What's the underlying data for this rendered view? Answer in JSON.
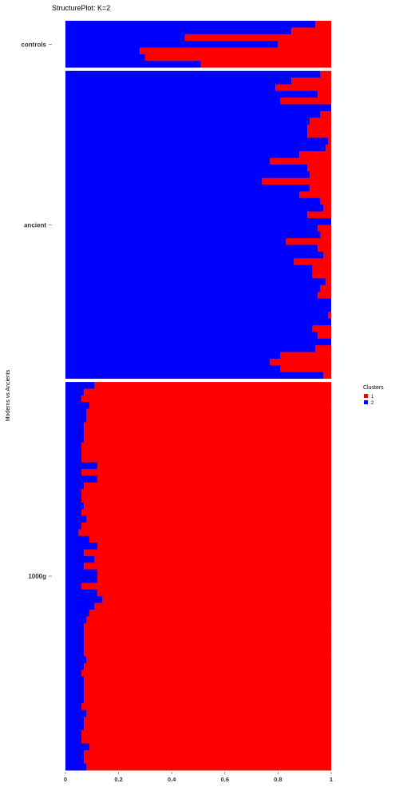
{
  "chart_data": {
    "type": "bar",
    "orientation": "horizontal",
    "stacked": true,
    "title": "StructurePlot: K=2",
    "xlabel": "",
    "ylabel": "Moderns vs Ancients",
    "xlim": [
      0,
      1
    ],
    "x_ticks": [
      "0",
      "0.2",
      "0.4",
      "0.6",
      "0.8",
      "1"
    ],
    "legend": {
      "title": "Clusters",
      "position": "right",
      "entries": [
        {
          "label": "1",
          "color": "#ff0000"
        },
        {
          "label": "2",
          "color": "#0000ff"
        }
      ]
    },
    "colors": {
      "cluster1": "#ff0000",
      "cluster2": "#0000ff"
    },
    "description_value": "cluster 2 (blue) proportion per individual; cluster 1 (red) is the remainder",
    "groups": [
      {
        "name": "controls",
        "cluster2": [
          0.94,
          0.85,
          0.45,
          0.8,
          0.28,
          0.3,
          0.51
        ]
      },
      {
        "name": "ancient",
        "cluster2": [
          0.96,
          0.85,
          0.79,
          0.95,
          0.81,
          1.0,
          0.96,
          0.92,
          0.91,
          0.91,
          0.99,
          0.98,
          0.88,
          0.77,
          0.91,
          0.92,
          0.74,
          0.92,
          0.88,
          0.96,
          0.97,
          0.91,
          1.0,
          0.95,
          0.96,
          0.83,
          0.95,
          0.97,
          0.86,
          0.93,
          0.93,
          0.98,
          0.96,
          0.95,
          1.0,
          1.0,
          0.99,
          1.0,
          0.93,
          0.95,
          1.0,
          0.94,
          0.81,
          0.77,
          0.81,
          0.97
        ]
      },
      {
        "name": "1000g",
        "cluster2": [
          0.11,
          0.07,
          0.06,
          0.09,
          0.08,
          0.08,
          0.07,
          0.07,
          0.07,
          0.06,
          0.06,
          0.06,
          0.12,
          0.06,
          0.12,
          0.07,
          0.06,
          0.06,
          0.07,
          0.06,
          0.08,
          0.06,
          0.05,
          0.09,
          0.12,
          0.07,
          0.11,
          0.07,
          0.12,
          0.12,
          0.06,
          0.12,
          0.14,
          0.11,
          0.09,
          0.08,
          0.07,
          0.07,
          0.07,
          0.07,
          0.07,
          0.08,
          0.07,
          0.06,
          0.07,
          0.07,
          0.07,
          0.07,
          0.06,
          0.08,
          0.07,
          0.07,
          0.06,
          0.06,
          0.09,
          0.07,
          0.07,
          0.08
        ]
      }
    ]
  }
}
